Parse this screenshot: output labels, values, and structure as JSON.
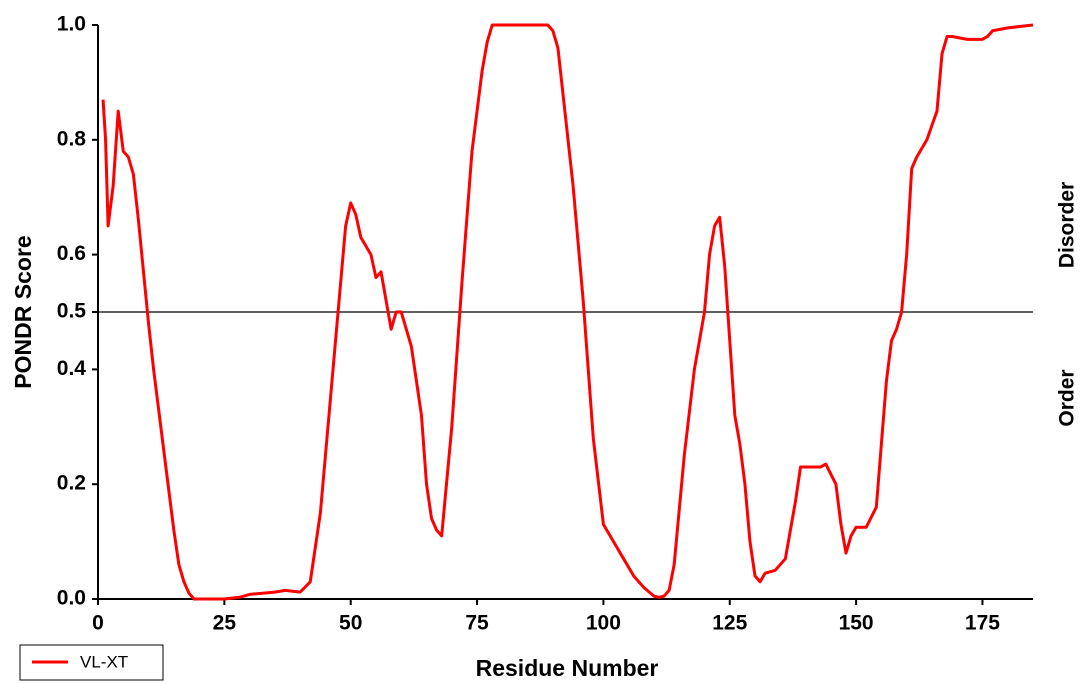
{
  "chart_data": {
    "type": "line",
    "x_label": "Residue Number",
    "y_label": "PONDR Score",
    "xlim": [
      0,
      185
    ],
    "ylim": [
      0,
      1
    ],
    "xticks": [
      0,
      25,
      50,
      75,
      100,
      125,
      150,
      175
    ],
    "yticks": [
      {
        "value": 0,
        "label": "0.0"
      },
      0.2,
      0.4,
      0.5,
      0.6,
      0.8,
      {
        "value": 1,
        "label": "1.0"
      }
    ],
    "threshold": 0.5,
    "annotations": [
      "Disorder",
      "Order"
    ],
    "x": [
      1,
      1.5,
      2,
      3,
      4,
      5,
      6,
      7,
      8,
      9,
      10,
      11,
      12,
      13,
      14,
      15,
      16,
      17,
      18,
      19,
      20,
      25,
      28,
      30,
      35,
      37,
      40,
      42,
      44,
      46,
      48,
      49,
      50,
      51,
      52,
      54,
      55,
      56,
      57,
      58,
      59,
      60,
      62,
      64,
      65,
      66,
      67,
      68,
      70,
      72,
      74,
      76,
      77,
      78,
      80,
      85,
      89,
      90,
      91,
      92,
      94,
      96,
      98,
      100,
      102,
      104,
      106,
      108,
      110,
      111,
      112,
      113,
      114,
      116,
      118,
      119,
      120,
      121,
      122,
      123,
      124,
      125,
      126,
      127,
      128,
      129,
      130,
      131,
      132,
      134,
      136,
      138,
      139,
      141,
      143,
      144,
      146,
      147,
      148,
      149,
      150,
      152,
      154,
      155,
      156,
      157,
      158,
      159,
      160,
      161,
      162,
      164,
      166,
      167,
      168,
      169,
      172,
      175,
      176,
      177,
      180,
      183,
      185
    ],
    "series": [
      {
        "name": "VL-XT",
        "color": "#ff0000",
        "values": [
          0.87,
          0.8,
          0.65,
          0.72,
          0.85,
          0.78,
          0.77,
          0.74,
          0.66,
          0.57,
          0.48,
          0.4,
          0.33,
          0.26,
          0.19,
          0.12,
          0.06,
          0.03,
          0.01,
          0.0,
          0.0,
          0.0,
          0.003,
          0.008,
          0.012,
          0.015,
          0.012,
          0.03,
          0.15,
          0.35,
          0.55,
          0.65,
          0.69,
          0.67,
          0.63,
          0.6,
          0.56,
          0.57,
          0.52,
          0.47,
          0.5,
          0.5,
          0.44,
          0.32,
          0.2,
          0.14,
          0.12,
          0.11,
          0.3,
          0.55,
          0.78,
          0.92,
          0.97,
          1.0,
          1.0,
          1.0,
          1.0,
          0.99,
          0.96,
          0.88,
          0.72,
          0.52,
          0.28,
          0.13,
          0.1,
          0.07,
          0.04,
          0.02,
          0.005,
          0.003,
          0.005,
          0.015,
          0.06,
          0.25,
          0.4,
          0.45,
          0.5,
          0.6,
          0.65,
          0.665,
          0.58,
          0.45,
          0.32,
          0.27,
          0.2,
          0.1,
          0.04,
          0.03,
          0.045,
          0.05,
          0.07,
          0.17,
          0.23,
          0.23,
          0.23,
          0.235,
          0.2,
          0.13,
          0.08,
          0.11,
          0.125,
          0.125,
          0.16,
          0.27,
          0.38,
          0.45,
          0.47,
          0.5,
          0.6,
          0.75,
          0.77,
          0.8,
          0.85,
          0.95,
          0.98,
          0.98,
          0.975,
          0.975,
          0.98,
          0.99,
          0.995,
          0.998,
          1.0
        ]
      }
    ]
  }
}
